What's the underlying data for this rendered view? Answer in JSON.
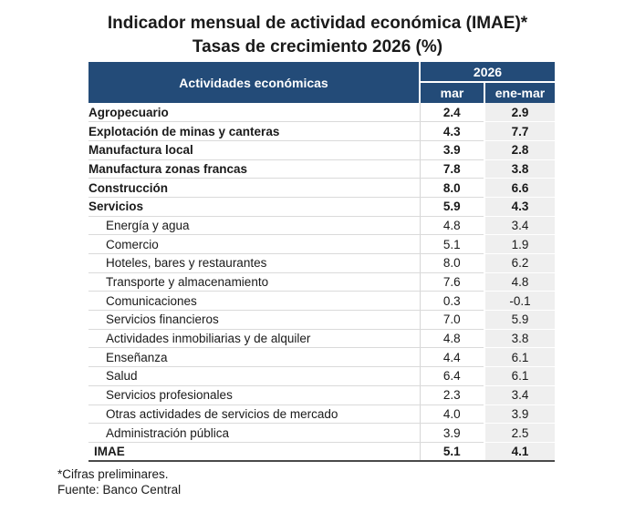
{
  "title": {
    "line1": "Indicador mensual de actividad económica (IMAE)*",
    "line2": "Tasas de crecimiento 2026 (%)"
  },
  "chart_data": {
    "type": "table",
    "title": "Indicador mensual de actividad económica (IMAE)*",
    "subtitle": "Tasas de crecimiento 2026 (%)",
    "row_header": "Actividades económicas",
    "column_group": "2026",
    "columns": [
      "mar",
      "ene-mar"
    ],
    "rows": [
      {
        "label": "Agropecuario",
        "mar": "2.4",
        "ene_mar": "2.9",
        "style": "category"
      },
      {
        "label": "Explotación de minas y canteras",
        "mar": "4.3",
        "ene_mar": "7.7",
        "style": "category"
      },
      {
        "label": "Manufactura local",
        "mar": "3.9",
        "ene_mar": "2.8",
        "style": "category"
      },
      {
        "label": "Manufactura zonas francas",
        "mar": "7.8",
        "ene_mar": "3.8",
        "style": "category"
      },
      {
        "label": "Construcción",
        "mar": "8.0",
        "ene_mar": "6.6",
        "style": "category"
      },
      {
        "label": "Servicios",
        "mar": "5.9",
        "ene_mar": "4.3",
        "style": "category"
      },
      {
        "label": "Energía y agua",
        "mar": "4.8",
        "ene_mar": "3.4",
        "style": "sub"
      },
      {
        "label": "Comercio",
        "mar": "5.1",
        "ene_mar": "1.9",
        "style": "sub"
      },
      {
        "label": "Hoteles, bares y restaurantes",
        "mar": "8.0",
        "ene_mar": "6.2",
        "style": "sub"
      },
      {
        "label": "Transporte y almacenamiento",
        "mar": "7.6",
        "ene_mar": "4.8",
        "style": "sub"
      },
      {
        "label": "Comunicaciones",
        "mar": "0.3",
        "ene_mar": "-0.1",
        "style": "sub"
      },
      {
        "label": "Servicios financieros",
        "mar": "7.0",
        "ene_mar": "5.9",
        "style": "sub"
      },
      {
        "label": "Actividades inmobiliarias y de alquiler",
        "mar": "4.8",
        "ene_mar": "3.8",
        "style": "sub"
      },
      {
        "label": "Enseñanza",
        "mar": "4.4",
        "ene_mar": "6.1",
        "style": "sub"
      },
      {
        "label": "Salud",
        "mar": "6.4",
        "ene_mar": "6.1",
        "style": "sub"
      },
      {
        "label": "Servicios profesionales",
        "mar": "2.3",
        "ene_mar": "3.4",
        "style": "sub"
      },
      {
        "label": "Otras actividades de servicios de mercado",
        "mar": "4.0",
        "ene_mar": "3.9",
        "style": "sub"
      },
      {
        "label": "Administración pública",
        "mar": "3.9",
        "ene_mar": "2.5",
        "style": "sub"
      },
      {
        "label": "IMAE",
        "mar": "5.1",
        "ene_mar": "4.1",
        "style": "total"
      }
    ],
    "footnotes": [
      "*Cifras preliminares.",
      "Fuente: Banco Central"
    ]
  },
  "colors": {
    "header_bg": "#234B78",
    "header_text": "#FFFFFF",
    "shaded_column_bg": "#EFEFEF",
    "row_divider": "#DADADA",
    "table_bottom_border": "#4A4A4A"
  }
}
